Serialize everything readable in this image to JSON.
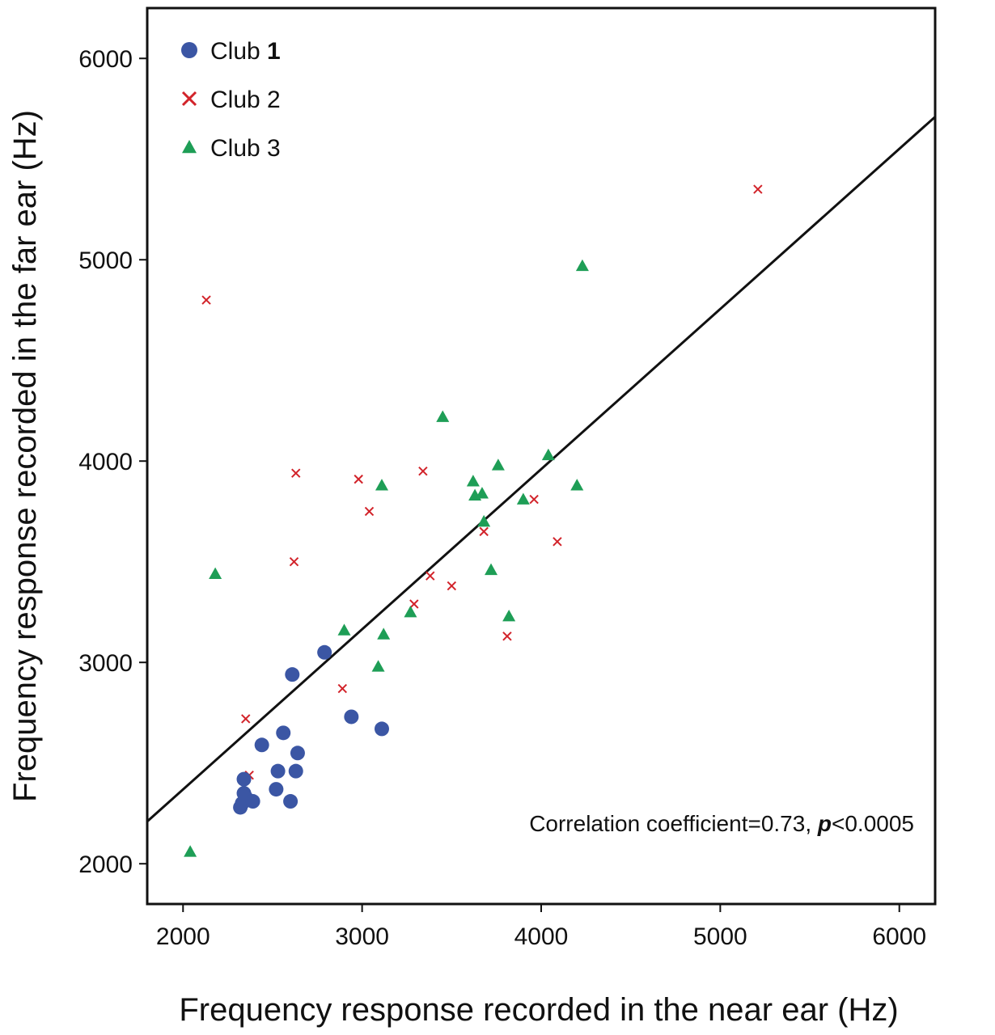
{
  "chart_data": {
    "type": "scatter",
    "title": "",
    "xlabel": "Frequency response recorded in the near ear (Hz)",
    "ylabel": "Frequency response recorded in the far ear (Hz)",
    "xlim": [
      1800,
      6200
    ],
    "ylim": [
      1800,
      6250
    ],
    "xticks": [
      2000,
      3000,
      4000,
      5000,
      6000
    ],
    "yticks": [
      2000,
      3000,
      4000,
      5000,
      6000
    ],
    "grid": false,
    "legend_position": "top-left",
    "annotation": {
      "text_before": "Correlation coefficient=0.73, ",
      "text_italic": "p",
      "text_after": "<0.0005"
    },
    "regression_line": {
      "x": [
        1800,
        6200
      ],
      "y": [
        2210,
        5710
      ]
    },
    "series": [
      {
        "name_text": "Club ",
        "name_num": "1",
        "marker": "circle",
        "color": "#3b56a4",
        "points": [
          [
            2320,
            2280
          ],
          [
            2330,
            2300
          ],
          [
            2340,
            2350
          ],
          [
            2350,
            2330
          ],
          [
            2340,
            2420
          ],
          [
            2390,
            2310
          ],
          [
            2440,
            2590
          ],
          [
            2520,
            2370
          ],
          [
            2530,
            2460
          ],
          [
            2560,
            2650
          ],
          [
            2600,
            2310
          ],
          [
            2610,
            2940
          ],
          [
            2630,
            2460
          ],
          [
            2640,
            2550
          ],
          [
            2790,
            3050
          ],
          [
            2940,
            2730
          ],
          [
            3110,
            2670
          ]
        ]
      },
      {
        "name_text": "Club 2",
        "name_num": "",
        "marker": "x",
        "color": "#d2232a",
        "points": [
          [
            2130,
            4800
          ],
          [
            2350,
            2720
          ],
          [
            2370,
            2440
          ],
          [
            2620,
            3500
          ],
          [
            2630,
            3940
          ],
          [
            2890,
            2870
          ],
          [
            2980,
            3910
          ],
          [
            3040,
            3750
          ],
          [
            3290,
            3290
          ],
          [
            3340,
            3950
          ],
          [
            3380,
            3430
          ],
          [
            3500,
            3380
          ],
          [
            3680,
            3650
          ],
          [
            3810,
            3130
          ],
          [
            3960,
            3810
          ],
          [
            4090,
            3600
          ],
          [
            5210,
            5350
          ]
        ]
      },
      {
        "name_text": "Club 3",
        "name_num": "",
        "marker": "triangle",
        "color": "#1e9e56",
        "points": [
          [
            2040,
            2060
          ],
          [
            2180,
            3440
          ],
          [
            2900,
            3160
          ],
          [
            3090,
            2980
          ],
          [
            3110,
            3880
          ],
          [
            3120,
            3140
          ],
          [
            3270,
            3250
          ],
          [
            3450,
            4220
          ],
          [
            3620,
            3900
          ],
          [
            3630,
            3830
          ],
          [
            3670,
            3840
          ],
          [
            3680,
            3700
          ],
          [
            3720,
            3460
          ],
          [
            3760,
            3980
          ],
          [
            3820,
            3230
          ],
          [
            3900,
            3810
          ],
          [
            4040,
            4030
          ],
          [
            4200,
            3880
          ],
          [
            4230,
            4970
          ]
        ]
      }
    ]
  }
}
